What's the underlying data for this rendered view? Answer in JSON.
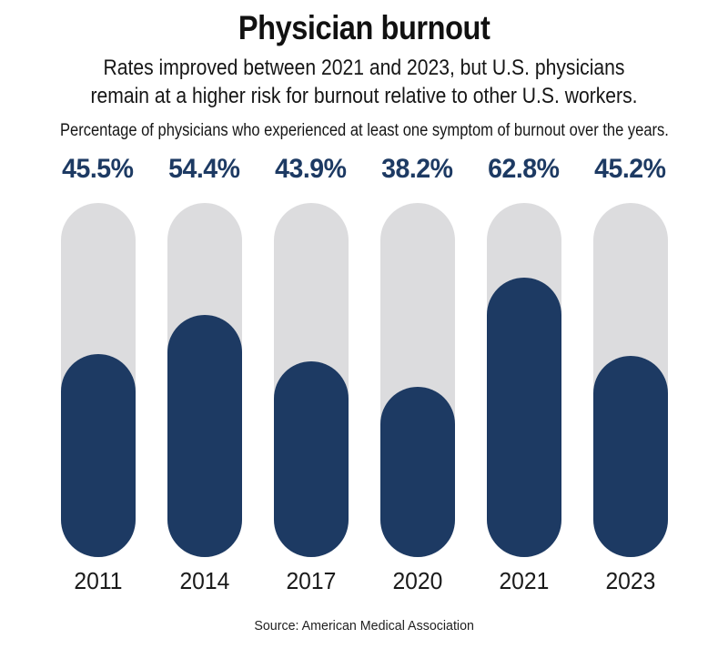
{
  "header": {
    "title": "Physician burnout",
    "subtitle_line1": "Rates improved between 2021 and 2023, but U.S. physicians",
    "subtitle_line2": "remain at a higher risk for burnout relative to other U.S. workers.",
    "description": "Percentage of physicians who experienced at least one symptom of burnout over the years."
  },
  "chart_data": {
    "type": "bar",
    "orientation": "vertical",
    "title": "Physician burnout",
    "xlabel": "",
    "ylabel": "",
    "categories": [
      "2011",
      "2014",
      "2017",
      "2020",
      "2021",
      "2023"
    ],
    "values": [
      45.5,
      54.4,
      43.9,
      38.2,
      62.8,
      45.2
    ],
    "value_labels": [
      "45.5%",
      "54.4%",
      "43.9%",
      "38.2%",
      "62.8%",
      "45.2%"
    ],
    "ylim": [
      0,
      79.5
    ],
    "grid": false,
    "legend": "none",
    "colors": {
      "bar_fill": "#1d3a63",
      "bar_track": "#dcdcde",
      "value_label": "#1d3a63",
      "category_label": "#1a1a1a"
    }
  },
  "footer": {
    "source": "Source: American Medical Association"
  }
}
